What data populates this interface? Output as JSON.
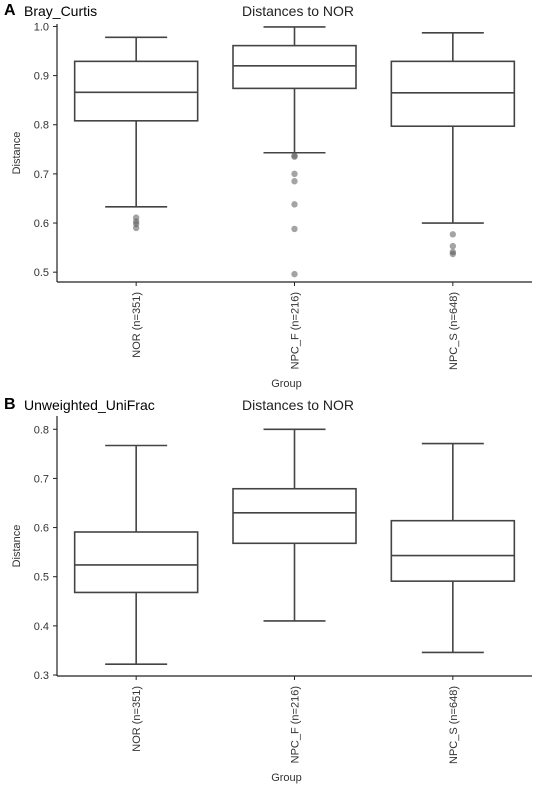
{
  "panels": [
    {
      "letter": "A",
      "metric": "Bray_Curtis",
      "chart_data": {
        "type": "box",
        "title": "Distances to NOR",
        "xlabel": "Group",
        "ylabel": "Distance",
        "ylim": [
          0.48,
          1.005
        ],
        "yticks": [
          "0.5",
          "0.6",
          "0.7",
          "0.8",
          "0.9",
          "1.0"
        ],
        "categories": [
          "NOR (n=351)",
          "NPC_F (n=216)",
          "NPC_S (n=648)"
        ],
        "boxes": [
          {
            "whisker_low": 0.633,
            "q1": 0.808,
            "median": 0.866,
            "q3": 0.929,
            "whisker_high": 0.978,
            "outliers": [
              0.611,
              0.603,
              0.598,
              0.59
            ]
          },
          {
            "whisker_low": 0.743,
            "q1": 0.874,
            "median": 0.92,
            "q3": 0.961,
            "whisker_high": 0.999,
            "outliers": [
              0.737,
              0.735,
              0.7,
              0.685,
              0.638,
              0.588,
              0.496
            ]
          },
          {
            "whisker_low": 0.6,
            "q1": 0.797,
            "median": 0.865,
            "q3": 0.929,
            "whisker_high": 0.987,
            "outliers": [
              0.577,
              0.553,
              0.541,
              0.537
            ]
          }
        ],
        "grid": false
      }
    },
    {
      "letter": "B",
      "metric": "Unweighted_UniFrac",
      "chart_data": {
        "type": "box",
        "title": "Distances to NOR",
        "xlabel": "Group",
        "ylabel": "Distance",
        "ylim": [
          0.298,
          0.827
        ],
        "yticks": [
          "0.3",
          "0.4",
          "0.5",
          "0.6",
          "0.7",
          "0.8"
        ],
        "categories": [
          "NOR (n=351)",
          "NPC_F (n=216)",
          "NPC_S (n=648)"
        ],
        "boxes": [
          {
            "whisker_low": 0.322,
            "q1": 0.468,
            "median": 0.524,
            "q3": 0.591,
            "whisker_high": 0.767,
            "outliers": []
          },
          {
            "whisker_low": 0.41,
            "q1": 0.568,
            "median": 0.63,
            "q3": 0.679,
            "whisker_high": 0.8,
            "outliers": []
          },
          {
            "whisker_low": 0.346,
            "q1": 0.491,
            "median": 0.543,
            "q3": 0.614,
            "whisker_high": 0.771,
            "outliers": []
          }
        ],
        "grid": false
      }
    }
  ]
}
